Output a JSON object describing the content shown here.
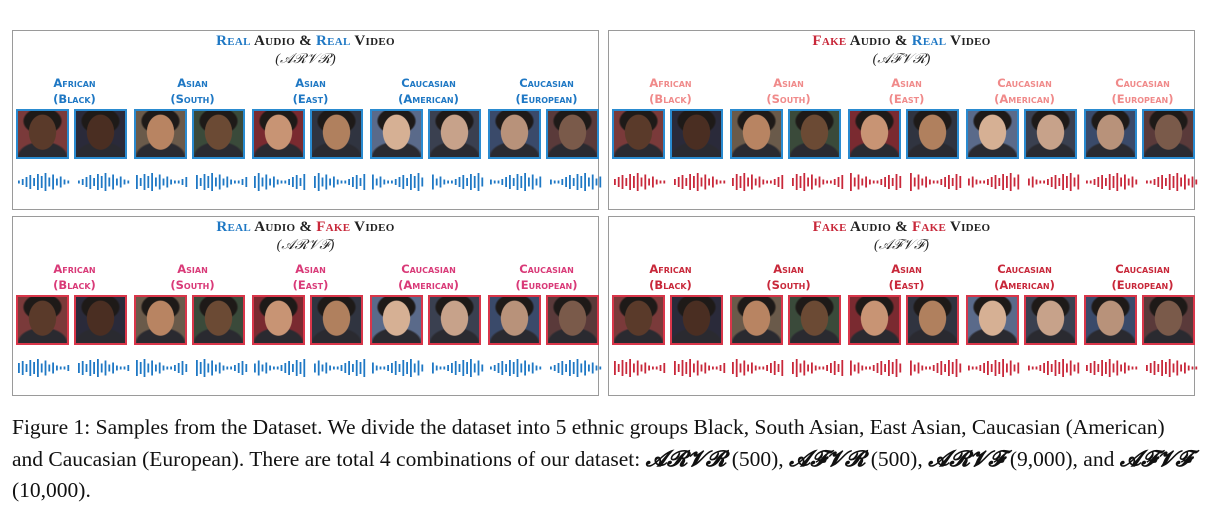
{
  "colors": {
    "real": "#1f78c4",
    "fake": "#c8283a",
    "pink": "#f08a8a",
    "magenta": "#d93a78",
    "border_real": "#2a8bd0",
    "border_fake": "#d9364a"
  },
  "panels": [
    {
      "id": "ArVr",
      "title_parts": [
        [
          "Real",
          "real"
        ],
        [
          " Audio & ",
          "dark"
        ],
        [
          "Real",
          "real"
        ],
        [
          " Video",
          "dark"
        ]
      ],
      "subtitle": "(𝒜ℛ𝒱ℛ)",
      "label_color": "real",
      "face_border": "border_real",
      "wave_color": "real",
      "groups": [
        {
          "line1": "African",
          "line2": "(Black)"
        },
        {
          "line1": "Asian",
          "line2": "(South)"
        },
        {
          "line1": "Asian",
          "line2": "(East)"
        },
        {
          "line1": "Caucasian",
          "line2": "(American)"
        },
        {
          "line1": "Caucasian",
          "line2": "(European)"
        }
      ]
    },
    {
      "id": "AfVr",
      "title_parts": [
        [
          "Fake",
          "fake"
        ],
        [
          " Audio & ",
          "dark"
        ],
        [
          "Real",
          "real"
        ],
        [
          " Video",
          "dark"
        ]
      ],
      "subtitle": "(𝒜ℱ𝒱ℛ)",
      "label_color": "pink",
      "face_border": "border_real",
      "wave_color": "fake",
      "groups": [
        {
          "line1": "African",
          "line2": "(Black)"
        },
        {
          "line1": "Asian",
          "line2": "(South)"
        },
        {
          "line1": "Asian",
          "line2": "(East)"
        },
        {
          "line1": "Caucasian",
          "line2": "(American)"
        },
        {
          "line1": "Caucasian",
          "line2": "(European)"
        }
      ]
    },
    {
      "id": "ArVf",
      "title_parts": [
        [
          "Real",
          "real"
        ],
        [
          " Audio & ",
          "dark"
        ],
        [
          "Fake",
          "fake"
        ],
        [
          " Video",
          "dark"
        ]
      ],
      "subtitle": "(𝒜ℛ𝒱ℱ)",
      "label_color": "magenta",
      "face_border": "border_fake",
      "wave_color": "real",
      "groups": [
        {
          "line1": "African",
          "line2": "(Black)"
        },
        {
          "line1": "Asian",
          "line2": "(South)"
        },
        {
          "line1": "Asian",
          "line2": "(East)"
        },
        {
          "line1": "Caucasian",
          "line2": "(American)"
        },
        {
          "line1": "Caucasian",
          "line2": "(European)"
        }
      ]
    },
    {
      "id": "AfVf",
      "title_parts": [
        [
          "Fake",
          "fake"
        ],
        [
          " Audio & ",
          "dark"
        ],
        [
          "Fake",
          "fake"
        ],
        [
          " Video",
          "dark"
        ]
      ],
      "subtitle": "(𝒜ℱ𝒱ℱ)",
      "label_color": "fake",
      "face_border": "border_fake",
      "wave_color": "fake",
      "groups": [
        {
          "line1": "African",
          "line2": "(Black)"
        },
        {
          "line1": "Asian",
          "line2": "(South)"
        },
        {
          "line1": "Asian",
          "line2": "(East)"
        },
        {
          "line1": "Caucasian",
          "line2": "(American)"
        },
        {
          "line1": "Caucasian",
          "line2": "(European)"
        }
      ]
    }
  ],
  "caption": {
    "part1": "Figure 1: Samples from the Dataset. We divide the dataset into 5 ethnic groups Black, South Asian, East Asian, Caucasian (American) and Caucasian (European). There are total 4 combinations of our dataset: ",
    "c1": "𝓐𝓡𝓥𝓡",
    "n1": " (500), ",
    "c2": "𝓐𝓕𝓥𝓡",
    "n2": " (500), ",
    "c3": "𝓐𝓡𝓥𝓕",
    "n3": " (9,000), and ",
    "c4": "𝓐𝓕𝓥𝓕",
    "n4": " (10,000)."
  }
}
